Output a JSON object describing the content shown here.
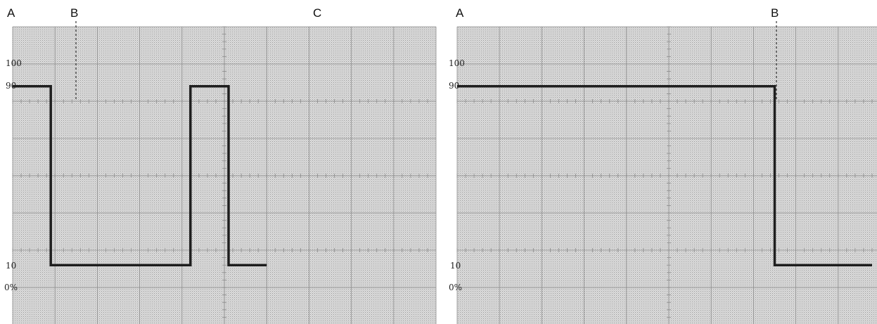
{
  "scale_labels": {
    "top": "100",
    "high": "90",
    "low": "10",
    "zero": "0%"
  },
  "scope_left": {
    "markers": [
      "A",
      "B",
      "C"
    ],
    "waveform": [
      [
        0,
        0.9
      ],
      [
        0.9,
        0.9
      ],
      [
        0.9,
        0.1
      ],
      [
        4.2,
        0.1
      ],
      [
        4.2,
        0.9
      ],
      [
        5.1,
        0.9
      ],
      [
        5.1,
        0.1
      ],
      [
        6,
        0.1
      ]
    ]
  },
  "scope_right": {
    "markers": [
      "A",
      "B"
    ],
    "waveform": [
      [
        0,
        0.9
      ],
      [
        7.5,
        0.9
      ],
      [
        7.5,
        0.1
      ],
      [
        9.8,
        0.1
      ]
    ]
  },
  "colors": {
    "grid_bg": "#d0d0d0",
    "grid_line": "#8c8c8c",
    "trace": "#1e1e1e"
  }
}
